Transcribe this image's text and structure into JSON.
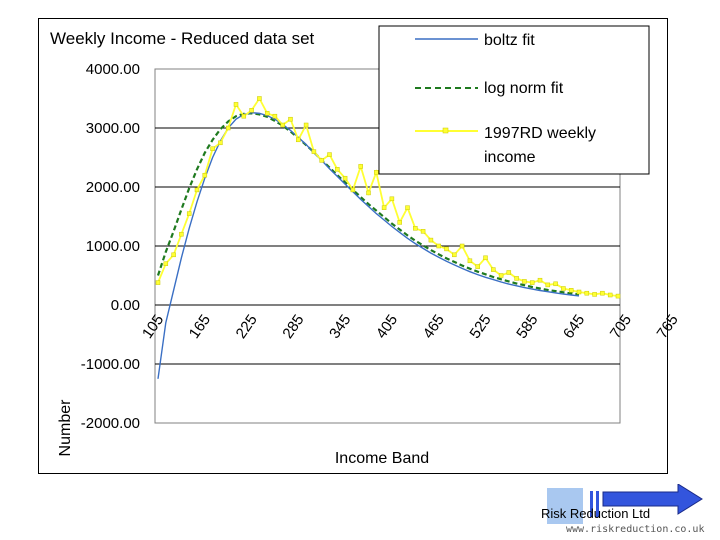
{
  "chart_data": {
    "type": "line",
    "title": "Weekly Income - Reduced data set",
    "xlabel": "Income Band",
    "ylabel": "Number",
    "ylim": [
      -2000,
      4000
    ],
    "ytick_labels": [
      "4000.00",
      "3000.00",
      "2000.00",
      "1000.00",
      "0.00",
      "-1000.00",
      "-2000.00"
    ],
    "ytick_values": [
      4000,
      3000,
      2000,
      1000,
      0,
      -1000,
      -2000
    ],
    "xtick_labels": [
      "105",
      "165",
      "225",
      "285",
      "345",
      "405",
      "465",
      "525",
      "585",
      "645",
      "705",
      "765"
    ],
    "x_start": 105,
    "x_step": 10,
    "grid": "horizontal-major",
    "legend_position": "top-right",
    "series": [
      {
        "name": "boltz fit",
        "color": "#3a6fc4",
        "style": "solid",
        "values": [
          -1250,
          -300,
          250,
          800,
          1300,
          1750,
          2150,
          2500,
          2780,
          3000,
          3150,
          3230,
          3260,
          3250,
          3210,
          3150,
          3060,
          2960,
          2840,
          2720,
          2580,
          2450,
          2310,
          2180,
          2050,
          1920,
          1790,
          1670,
          1550,
          1440,
          1330,
          1230,
          1130,
          1040,
          960,
          880,
          810,
          740,
          680,
          620,
          565,
          515,
          470,
          430,
          390,
          355,
          325,
          295,
          270,
          245,
          225,
          205,
          185,
          170,
          155
        ]
      },
      {
        "name": "log norm fit",
        "color": "#1f7a1f",
        "style": "dashed",
        "values": [
          500,
          900,
          1250,
          1620,
          1980,
          2300,
          2580,
          2800,
          2980,
          3110,
          3200,
          3240,
          3250,
          3230,
          3190,
          3120,
          3040,
          2940,
          2830,
          2710,
          2590,
          2460,
          2330,
          2200,
          2080,
          1950,
          1830,
          1710,
          1600,
          1490,
          1380,
          1280,
          1180,
          1090,
          1010,
          930,
          860,
          790,
          730,
          670,
          615,
          565,
          520,
          475,
          435,
          400,
          365,
          335,
          305,
          280,
          255,
          235,
          215,
          195,
          180
        ]
      },
      {
        "name": "1997RD weekly income",
        "color": "#ffff33",
        "style": "solid-markers",
        "values": [
          380,
          700,
          850,
          1200,
          1550,
          1950,
          2200,
          2650,
          2750,
          3000,
          3400,
          3200,
          3300,
          3500,
          3250,
          3200,
          3050,
          3150,
          2800,
          3050,
          2600,
          2450,
          2550,
          2300,
          2150,
          1950,
          2350,
          1900,
          2250,
          1650,
          1800,
          1400,
          1650,
          1300,
          1250,
          1100,
          1000,
          950,
          850,
          1000,
          750,
          650,
          800,
          600,
          500,
          550,
          450,
          400,
          380,
          420,
          340,
          360,
          280,
          250,
          220,
          200,
          180,
          200,
          170,
          150
        ]
      }
    ]
  },
  "logo": {
    "name": "Risk Reduction Ltd",
    "url": "www.riskreduction.co.uk"
  },
  "colors": {
    "logo_blue": "#3355dd",
    "logo_light_blue": "#a9c8f0"
  }
}
